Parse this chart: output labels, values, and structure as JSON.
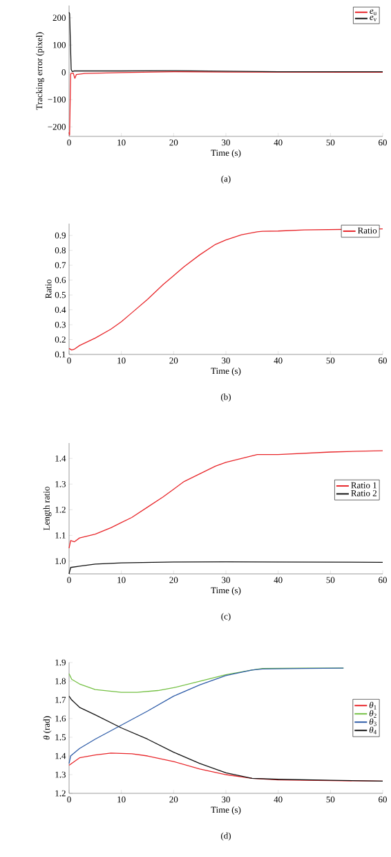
{
  "chart_data": [
    {
      "type": "line",
      "xlabel": "Time (s)",
      "ylabel": "Tracking error (pixel)",
      "annotations": [
        "(a)"
      ],
      "legend": "top right",
      "xlim": [
        0,
        60
      ],
      "xticks": [
        0,
        10,
        20,
        30,
        40,
        50,
        60
      ],
      "ylim": [
        -235,
        245
      ],
      "yticks": [
        {
          "value": -200,
          "label": "−200"
        },
        {
          "value": -100,
          "label": "−100"
        },
        0,
        100,
        200
      ],
      "series": [
        {
          "name": "*e*$_{u}$",
          "color": "#e8262a",
          "x": [
            0,
            0.1,
            0.3,
            0.8,
            1.1,
            1.4,
            3,
            10,
            20,
            30,
            60
          ],
          "values": [
            -220,
            -230,
            -5,
            -3,
            -22,
            -8,
            -4,
            -1,
            2,
            1,
            0
          ]
        },
        {
          "name": "*e*$_{v}$",
          "color": "#111111",
          "x": [
            0,
            0.1,
            0.4,
            0.6,
            1,
            10,
            20,
            40,
            60
          ],
          "values": [
            220,
            215,
            10,
            3,
            5,
            5,
            6,
            2,
            2
          ]
        }
      ]
    },
    {
      "type": "line",
      "xlabel": "Time (s)",
      "ylabel": "Ratio",
      "annotations": [
        "(b)"
      ],
      "legend": "top right",
      "xlim": [
        0,
        60
      ],
      "xticks": [
        0,
        10,
        20,
        30,
        40,
        50,
        60
      ],
      "ylim": [
        0.1,
        0.98
      ],
      "yticks": [
        0.1,
        0.2,
        0.3,
        0.4,
        0.5,
        0.6,
        0.7,
        0.8,
        0.9
      ],
      "series": [
        {
          "name": "Ratio",
          "color": "#e8262a",
          "x": [
            0,
            0.5,
            1,
            2,
            5,
            8,
            10,
            12,
            15,
            18,
            20,
            22,
            25,
            28,
            30,
            33,
            36,
            37,
            40,
            45,
            50,
            55,
            60
          ],
          "values": [
            0.14,
            0.13,
            0.135,
            0.16,
            0.21,
            0.27,
            0.32,
            0.38,
            0.47,
            0.57,
            0.63,
            0.69,
            0.77,
            0.84,
            0.87,
            0.905,
            0.925,
            0.928,
            0.93,
            0.938,
            0.94,
            0.942,
            0.945
          ]
        }
      ]
    },
    {
      "type": "line",
      "xlabel": "Time (s)",
      "ylabel": "Length ratio",
      "annotations": [
        "(c)"
      ],
      "legend": "right",
      "xlim": [
        0,
        60
      ],
      "xticks": [
        0,
        10,
        20,
        30,
        40,
        50,
        60
      ],
      "ylim": [
        0.95,
        1.46
      ],
      "yticks": [
        {
          "value": 1.0,
          "label": "1.0"
        },
        1.1,
        1.2,
        1.3,
        1.4
      ],
      "series": [
        {
          "name": "Ratio 1",
          "color": "#e8262a",
          "x": [
            0,
            0.3,
            1,
            2,
            5,
            8,
            10,
            12,
            15,
            18,
            20,
            22,
            25,
            28,
            30,
            33,
            36,
            40,
            45,
            50,
            55,
            60
          ],
          "values": [
            1.05,
            1.08,
            1.075,
            1.09,
            1.105,
            1.13,
            1.15,
            1.17,
            1.21,
            1.25,
            1.28,
            1.31,
            1.34,
            1.37,
            1.385,
            1.4,
            1.415,
            1.415,
            1.42,
            1.425,
            1.428,
            1.43
          ]
        },
        {
          "name": "Ratio 2",
          "color": "#111111",
          "x": [
            0,
            0.3,
            2,
            5,
            10,
            20,
            30,
            40,
            60
          ],
          "values": [
            0.95,
            0.975,
            0.98,
            0.988,
            0.993,
            0.996,
            0.997,
            0.996,
            0.995
          ]
        }
      ]
    },
    {
      "type": "line",
      "xlabel": "Time (s)",
      "ylabel": "*θ* (rad)",
      "annotations": [
        "(d)"
      ],
      "legend": "right",
      "xlim": [
        0,
        60
      ],
      "xticks": [
        0,
        10,
        20,
        30,
        40,
        50,
        60
      ],
      "ylim": [
        1.2,
        1.9
      ],
      "yticks": [
        1.2,
        1.3,
        1.4,
        1.5,
        1.6,
        1.7,
        1.8,
        1.9
      ],
      "series": [
        {
          "name": "*θ*$_{1}$",
          "color": "#e8262a",
          "x": [
            0,
            2,
            5,
            8,
            12,
            15,
            20,
            25,
            30,
            35,
            40,
            50,
            60
          ],
          "values": [
            1.35,
            1.39,
            1.405,
            1.415,
            1.412,
            1.4,
            1.37,
            1.33,
            1.3,
            1.28,
            1.272,
            1.268,
            1.265
          ]
        },
        {
          "name": "*θ*$_{2}$",
          "color": "#74c043",
          "x": [
            0,
            0.5,
            2,
            5,
            10,
            13,
            17,
            20,
            25,
            30,
            35,
            37,
            45,
            52.5
          ],
          "values": [
            1.84,
            1.81,
            1.785,
            1.755,
            1.74,
            1.74,
            1.75,
            1.765,
            1.8,
            1.835,
            1.86,
            1.868,
            1.87,
            1.87
          ]
        },
        {
          "name": "*θ*$_{3}$",
          "color": "#2e5ca8",
          "x": [
            0,
            0.3,
            2,
            5,
            10,
            15,
            20,
            25,
            30,
            35,
            37,
            45,
            52.5
          ],
          "values": [
            1.36,
            1.4,
            1.44,
            1.49,
            1.565,
            1.64,
            1.72,
            1.78,
            1.83,
            1.86,
            1.865,
            1.868,
            1.87
          ]
        },
        {
          "name": "*θ*$_{4}$",
          "color": "#111111",
          "x": [
            0,
            0.5,
            2,
            5,
            10,
            15,
            20,
            25,
            30,
            35,
            40,
            50,
            60
          ],
          "values": [
            1.72,
            1.7,
            1.66,
            1.62,
            1.55,
            1.49,
            1.42,
            1.36,
            1.31,
            1.28,
            1.275,
            1.27,
            1.265
          ]
        }
      ]
    }
  ]
}
